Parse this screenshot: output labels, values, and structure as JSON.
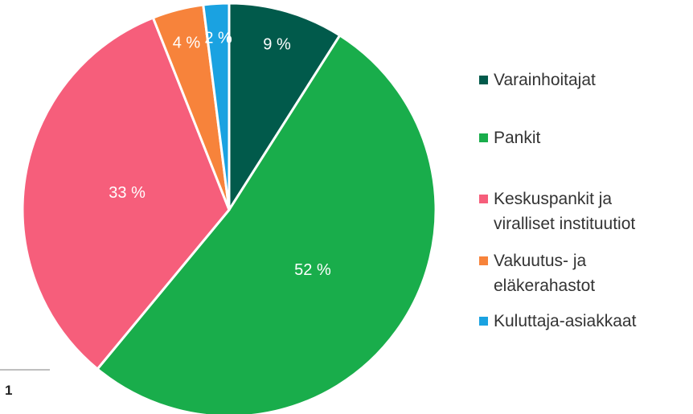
{
  "chart_data": {
    "type": "pie",
    "categories": [
      "Varainhoitajat",
      "Pankit",
      "Keskuspankit ja viralliset instituutiot",
      "Vakuutus- ja eläkerahastot",
      "Kuluttaja-asiakkaat"
    ],
    "values": [
      9,
      52,
      33,
      4,
      2
    ],
    "value_labels": [
      "9 %",
      "52 %",
      "33 %",
      "4 %",
      "2 %"
    ],
    "colors": [
      "#015a4b",
      "#19ad4b",
      "#f65e7b",
      "#f7833b",
      "#1aa2e1"
    ],
    "legend": "right",
    "annotations": [
      "1"
    ]
  }
}
